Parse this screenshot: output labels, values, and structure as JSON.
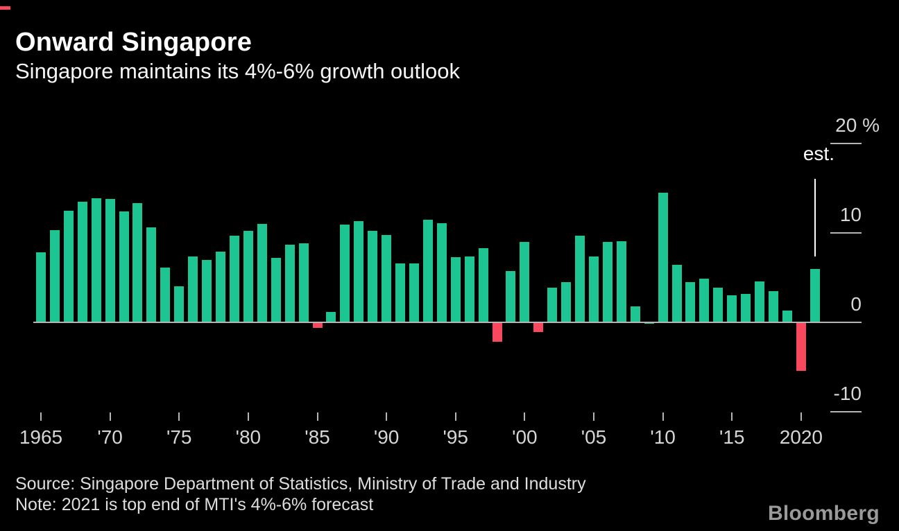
{
  "header": {
    "title": "Onward Singapore",
    "subtitle": "Singapore maintains its 4%-6% growth outlook"
  },
  "footer": {
    "source": "Source: Singapore Department of Statistics, Ministry of Trade and Industry",
    "note": "Note: 2021 is top end of MTI's 4%-6% forecast",
    "brand": "Bloomberg"
  },
  "colors": {
    "background": "#000000",
    "positive_bar": "#1cc592",
    "negative_bar": "#f8485e",
    "axis_line": "#b5b5b5",
    "axis_text": "#d6d6d6",
    "title_text": "#ffffff"
  },
  "chart_data": {
    "type": "bar",
    "title": "Onward Singapore",
    "subtitle": "Singapore maintains its 4%-6% growth outlook",
    "ylabel": "%",
    "ylim": [
      -12,
      21
    ],
    "grid": false,
    "legend": "none",
    "y_ticks": [
      {
        "value": 20,
        "label": "20 %"
      },
      {
        "value": 10,
        "label": "10"
      },
      {
        "value": 0,
        "label": "0"
      },
      {
        "value": -10,
        "label": "-10"
      }
    ],
    "x_ticks": [
      {
        "year": 1965,
        "label": "1965"
      },
      {
        "year": 1970,
        "label": "'70"
      },
      {
        "year": 1975,
        "label": "'75"
      },
      {
        "year": 1980,
        "label": "'80"
      },
      {
        "year": 1985,
        "label": "'85"
      },
      {
        "year": 1990,
        "label": "'90"
      },
      {
        "year": 1995,
        "label": "'95"
      },
      {
        "year": 2000,
        "label": "'00"
      },
      {
        "year": 2005,
        "label": "'05"
      },
      {
        "year": 2010,
        "label": "'10"
      },
      {
        "year": 2015,
        "label": "'15"
      },
      {
        "year": 2020,
        "label": "2020"
      }
    ],
    "years": [
      1965,
      1966,
      1967,
      1968,
      1969,
      1970,
      1971,
      1972,
      1973,
      1974,
      1975,
      1976,
      1977,
      1978,
      1979,
      1980,
      1981,
      1982,
      1983,
      1984,
      1985,
      1986,
      1987,
      1988,
      1989,
      1990,
      1991,
      1992,
      1993,
      1994,
      1995,
      1996,
      1997,
      1998,
      1999,
      2000,
      2001,
      2002,
      2003,
      2004,
      2005,
      2006,
      2007,
      2008,
      2009,
      2010,
      2011,
      2012,
      2013,
      2014,
      2015,
      2016,
      2017,
      2018,
      2019,
      2020,
      2021
    ],
    "values": [
      7.8,
      10.3,
      12.5,
      13.5,
      13.9,
      13.8,
      12.4,
      13.3,
      10.6,
      6.1,
      4.0,
      7.4,
      7.0,
      7.9,
      9.7,
      10.2,
      11.0,
      7.2,
      8.7,
      8.8,
      -0.6,
      1.2,
      10.9,
      11.3,
      10.2,
      9.8,
      6.6,
      6.6,
      11.5,
      11.1,
      7.3,
      7.4,
      8.3,
      -2.2,
      5.7,
      9.0,
      -1.1,
      3.9,
      4.5,
      9.7,
      7.4,
      9.0,
      9.1,
      1.8,
      -0.1,
      14.5,
      6.4,
      4.5,
      4.9,
      3.9,
      3.0,
      3.2,
      4.6,
      3.5,
      1.3,
      -5.4,
      6.0
    ],
    "estimate_year": 2021,
    "estimate_label": "est.",
    "green_override_years": [
      2009
    ],
    "positive_color": "#1cc592",
    "negative_color": "#f8485e"
  }
}
